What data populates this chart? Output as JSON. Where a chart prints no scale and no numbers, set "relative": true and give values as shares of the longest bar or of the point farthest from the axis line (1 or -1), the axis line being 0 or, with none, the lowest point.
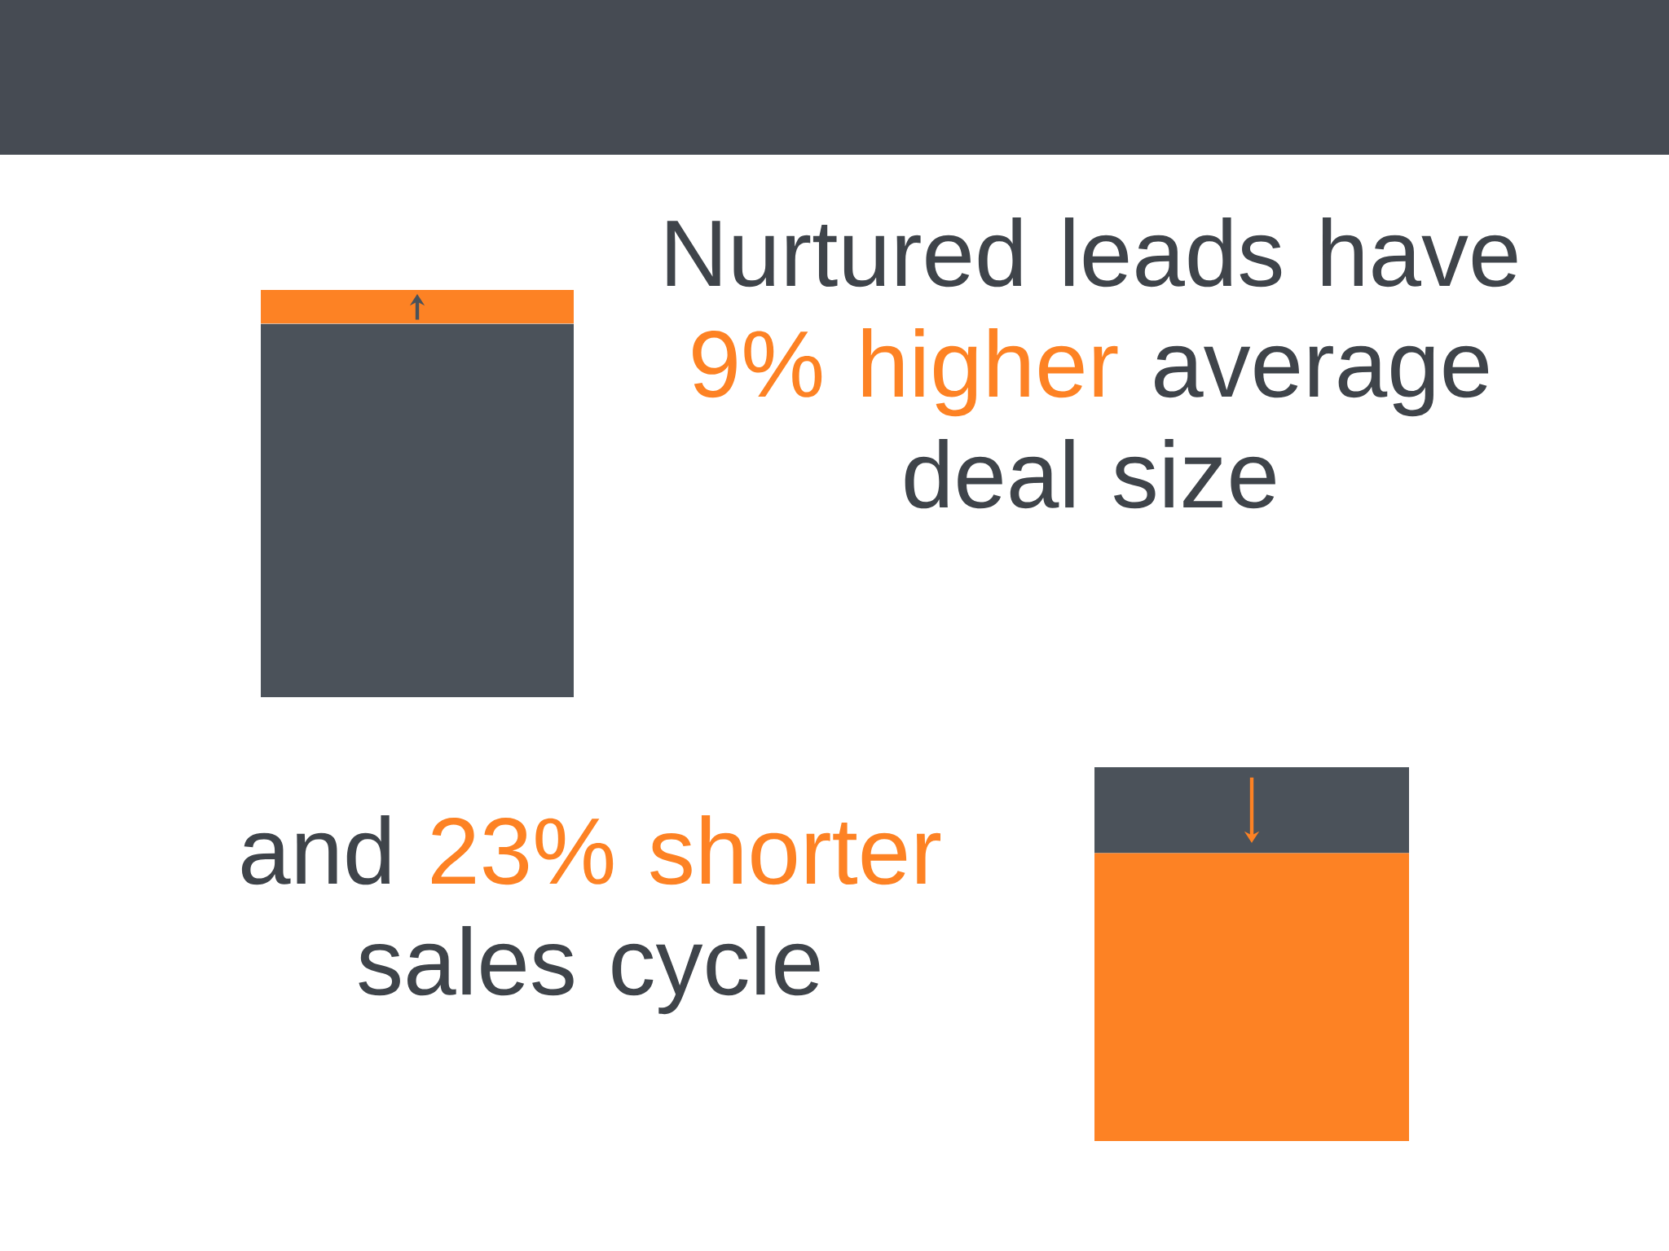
{
  "chart_data": [
    {
      "type": "bar",
      "stacked": true,
      "relative": true,
      "categories": [
        null
      ],
      "series": [
        {
          "color": "#4b525a",
          "values": [
            0.917
          ]
        },
        {
          "color": "#fd8224",
          "values": [
            0.083
          ]
        }
      ],
      "annotations": [
        "Nurtured leads have",
        "9% higher",
        "average",
        "deal size"
      ]
    },
    {
      "type": "bar",
      "stacked": true,
      "relative": true,
      "categories": [
        null
      ],
      "series": [
        {
          "color": "#fd8224",
          "values": [
            0.77
          ]
        },
        {
          "color": "#4b525a",
          "values": [
            0.23
          ]
        }
      ],
      "annotations": [
        "and",
        "23% shorter",
        "sales cycle"
      ]
    }
  ]
}
